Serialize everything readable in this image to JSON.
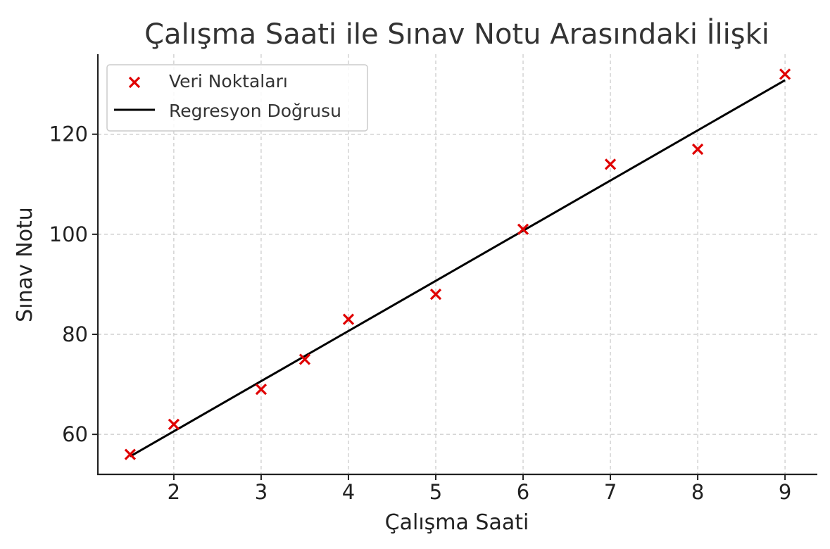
{
  "chart_data": {
    "type": "scatter",
    "title": "Çalışma Saati ile Sınav Notu Arasındaki İlişki",
    "xlabel": "Çalışma Saati",
    "ylabel": "Sınav Notu",
    "xlim": [
      1.13,
      9.37
    ],
    "ylim": [
      52,
      136
    ],
    "xticks": [
      2,
      3,
      4,
      5,
      6,
      7,
      8,
      9
    ],
    "yticks": [
      60,
      80,
      100,
      120
    ],
    "grid": true,
    "legend_position": "top-left",
    "series": [
      {
        "name": "Veri Noktaları",
        "kind": "scatter",
        "marker": "x",
        "color": "#e00000",
        "x": [
          1.5,
          2,
          3,
          3.5,
          4,
          5,
          6,
          7,
          8,
          9
        ],
        "y": [
          56,
          62,
          69,
          75,
          83,
          88,
          101,
          114,
          117,
          132
        ]
      },
      {
        "name": "Regresyon Doğrusu",
        "kind": "line",
        "color": "#000000",
        "x": [
          1.5,
          9
        ],
        "y": [
          55.6,
          130.8
        ]
      }
    ]
  }
}
